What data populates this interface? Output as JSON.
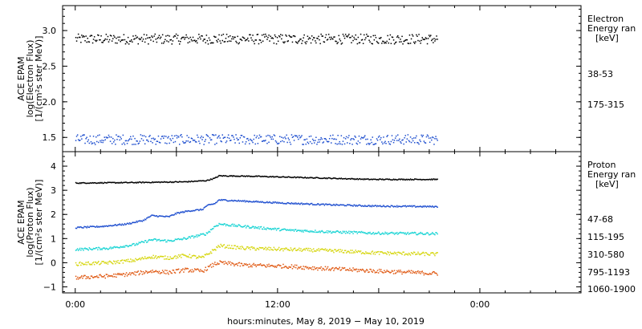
{
  "chart_data": [
    {
      "type": "scatter",
      "title": "",
      "ylabel_lines": [
        "ACE EPAM",
        "log(Electron Flux)",
        "[1/(cm²s ster MeV)]"
      ],
      "ylim": [
        1.3,
        3.35
      ],
      "yticks": [
        1.5,
        2.0,
        2.5,
        3.0
      ],
      "ytick_labels": [
        "1.5",
        "2.0",
        "2.5",
        "3.0"
      ],
      "legend_title": [
        "Electron",
        "Energy ran",
        "[keV]"
      ],
      "series": [
        {
          "name": "38-53",
          "color": "#000000",
          "base": 2.88,
          "profile": [
            [
              0,
              2.88
            ],
            [
              43,
              2.88
            ]
          ],
          "noise": 0.07
        },
        {
          "name": "175-315",
          "color": "#1f4fcf",
          "base": 1.47,
          "profile": [
            [
              0,
              1.47
            ],
            [
              43,
              1.47
            ]
          ],
          "noise": 0.07
        }
      ]
    },
    {
      "type": "scatter",
      "title": "",
      "ylabel_lines": [
        "ACE EPAM",
        "log(Proton Flux)",
        "[1/(cm²s ster MeV)]"
      ],
      "ylim": [
        -1.25,
        4.6
      ],
      "yticks": [
        -1,
        0,
        1,
        2,
        3,
        4
      ],
      "ytick_labels": [
        "−1",
        "0",
        "1",
        "2",
        "3",
        "4"
      ],
      "legend_title": [
        "Proton",
        "Energy ran",
        "[keV]"
      ],
      "series": [
        {
          "name": "47-68",
          "color": "#000000",
          "profile": [
            [
              0,
              3.3
            ],
            [
              7,
              3.32
            ],
            [
              13,
              3.35
            ],
            [
              15.5,
              3.4
            ],
            [
              16.5,
              3.5
            ],
            [
              17,
              3.6
            ],
            [
              21,
              3.58
            ],
            [
              30,
              3.5
            ],
            [
              35,
              3.45
            ],
            [
              43,
              3.45
            ]
          ],
          "noise": 0.02
        },
        {
          "name": "115-195",
          "color": "#1f4fcf",
          "profile": [
            [
              0,
              1.45
            ],
            [
              3,
              1.5
            ],
            [
              6,
              1.6
            ],
            [
              8,
              1.75
            ],
            [
              9,
              1.95
            ],
            [
              11,
              1.9
            ],
            [
              12,
              2.05
            ],
            [
              13.5,
              2.15
            ],
            [
              15,
              2.2
            ],
            [
              15.5,
              2.35
            ],
            [
              16.5,
              2.45
            ],
            [
              17,
              2.6
            ],
            [
              20,
              2.55
            ],
            [
              24,
              2.48
            ],
            [
              30,
              2.4
            ],
            [
              35,
              2.35
            ],
            [
              43,
              2.32
            ]
          ],
          "noise": 0.03
        },
        {
          "name": "310-580",
          "color": "#19d4d4",
          "profile": [
            [
              0,
              0.55
            ],
            [
              4,
              0.6
            ],
            [
              7,
              0.75
            ],
            [
              9,
              0.95
            ],
            [
              11,
              0.9
            ],
            [
              13,
              1.0
            ],
            [
              15.5,
              1.2
            ],
            [
              16.5,
              1.5
            ],
            [
              17,
              1.6
            ],
            [
              20,
              1.5
            ],
            [
              25,
              1.35
            ],
            [
              30,
              1.28
            ],
            [
              36,
              1.22
            ],
            [
              43,
              1.2
            ]
          ],
          "noise": 0.05
        },
        {
          "name": "795-1193",
          "color": "#d6d60f",
          "profile": [
            [
              0,
              -0.05
            ],
            [
              4,
              0.0
            ],
            [
              7,
              0.1
            ],
            [
              9,
              0.25
            ],
            [
              11,
              0.2
            ],
            [
              13,
              0.3
            ],
            [
              15,
              0.2
            ],
            [
              16.5,
              0.55
            ],
            [
              17,
              0.7
            ],
            [
              20,
              0.6
            ],
            [
              25,
              0.55
            ],
            [
              30,
              0.5
            ],
            [
              36,
              0.4
            ],
            [
              43,
              0.35
            ]
          ],
          "noise": 0.07
        },
        {
          "name": "1060-1900",
          "color": "#e05a14",
          "profile": [
            [
              0,
              -0.62
            ],
            [
              4,
              -0.55
            ],
            [
              7,
              -0.45
            ],
            [
              9,
              -0.35
            ],
            [
              11,
              -0.4
            ],
            [
              13,
              -0.3
            ],
            [
              15,
              -0.35
            ],
            [
              16.5,
              -0.05
            ],
            [
              17,
              0.0
            ],
            [
              20,
              -0.1
            ],
            [
              25,
              -0.15
            ],
            [
              30,
              -0.25
            ],
            [
              36,
              -0.35
            ],
            [
              43,
              -0.45
            ]
          ],
          "noise": 0.08
        }
      ]
    }
  ],
  "x_axis": {
    "xlim": [
      -1.5,
      60
    ],
    "ticks": [
      0,
      12,
      24,
      36,
      48
    ],
    "labeled_ticks": [
      {
        "x": 0,
        "label": "0:00"
      },
      {
        "x": 24,
        "label": "12:00"
      },
      {
        "x": 48,
        "label": "0:00"
      }
    ],
    "data_end": 43,
    "xlabel": "hours:minutes, May  8, 2019 − May 10, 2019"
  }
}
